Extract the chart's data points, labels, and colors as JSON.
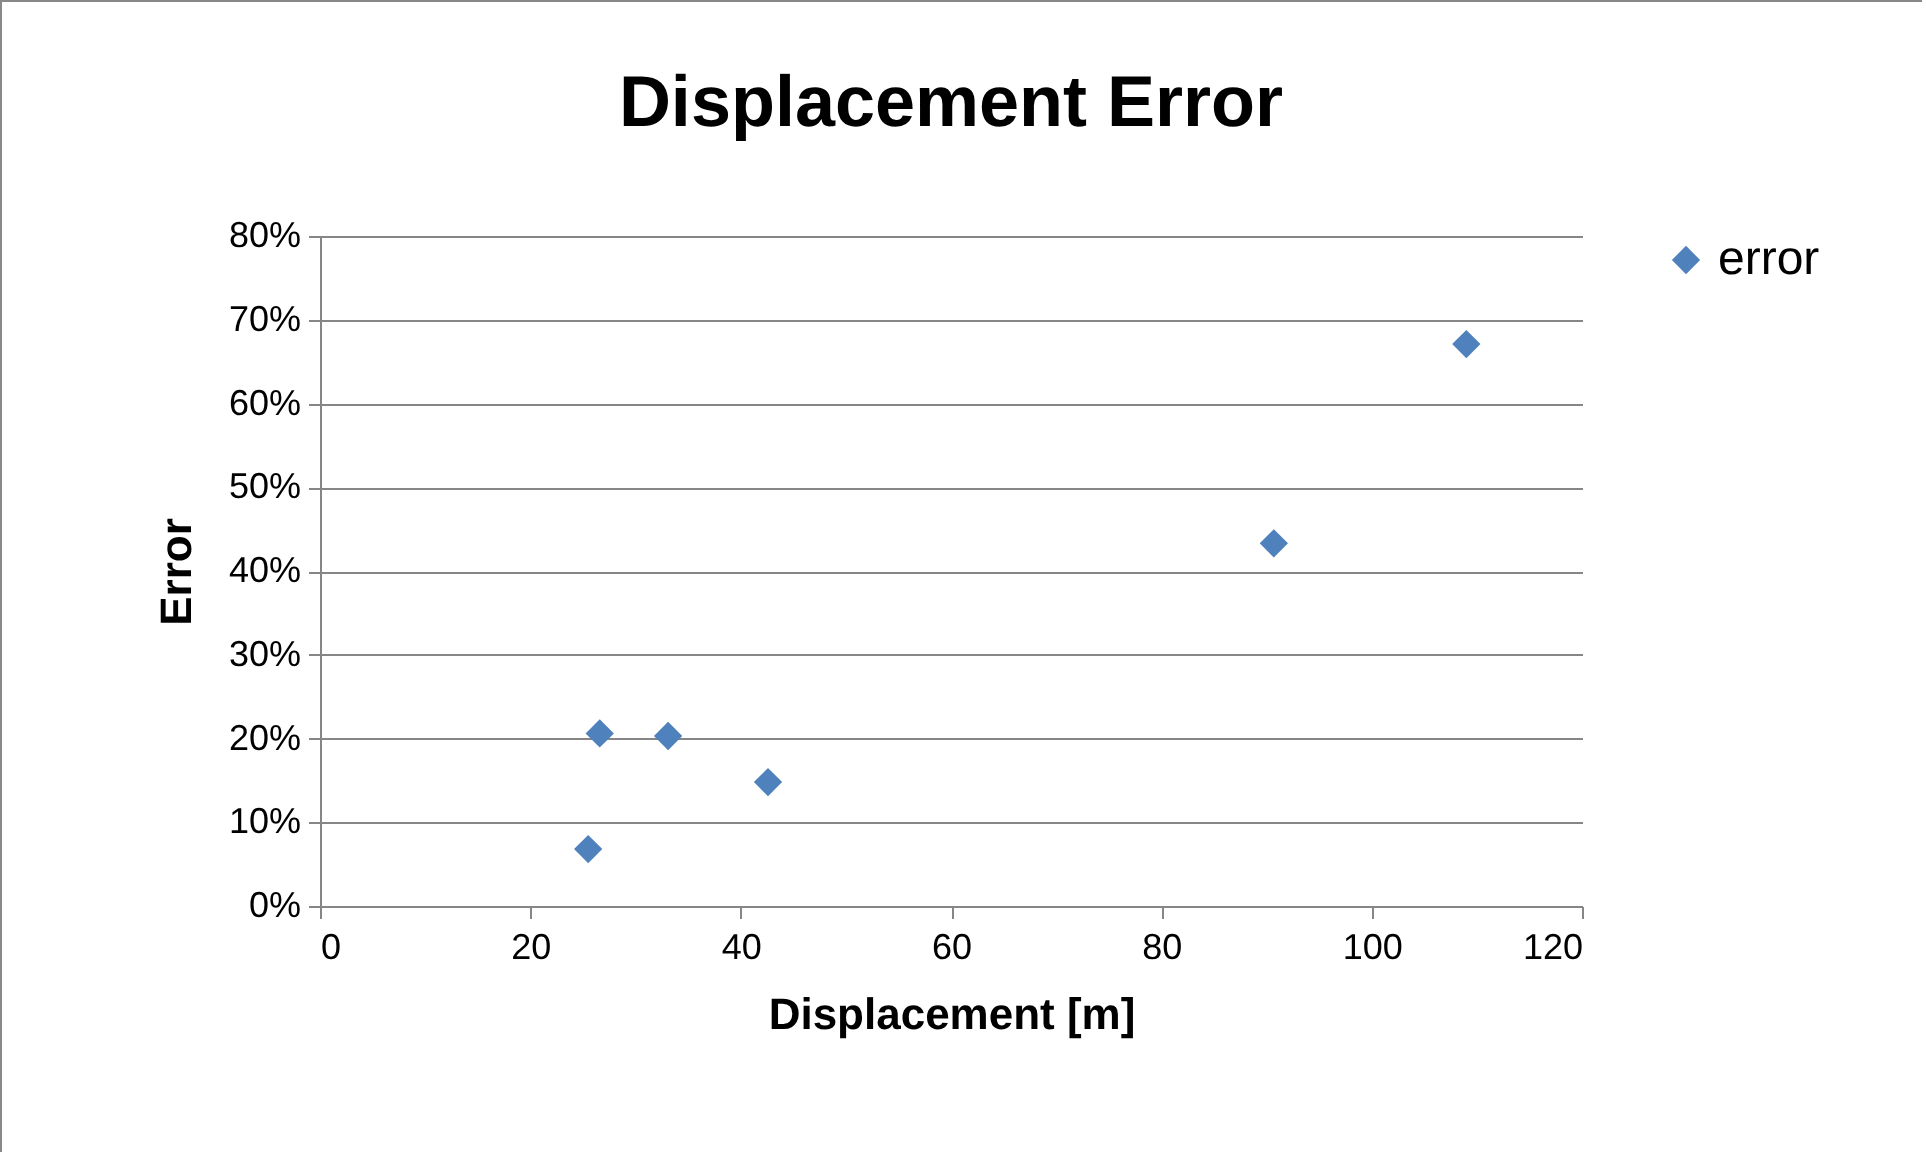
{
  "chart_data": {
    "type": "scatter",
    "title": "Displacement Error",
    "xlabel": "Displacement [m]",
    "ylabel": "Error",
    "x": [
      25.5,
      26.6,
      33.1,
      42.6,
      90.7,
      109
    ],
    "series": [
      {
        "name": "error",
        "color": "#4f81bd",
        "values": [
          6.8,
          20.6,
          20.3,
          14.8,
          43.3,
          67.1
        ]
      }
    ],
    "xlim": [
      0,
      120
    ],
    "xticks": [
      0,
      20,
      40,
      60,
      80,
      100,
      120
    ],
    "ylim": [
      0,
      80
    ],
    "yticks": [
      {
        "value": 0,
        "label": "0%"
      },
      {
        "value": 10,
        "label": "10%"
      },
      {
        "value": 20,
        "label": "20%"
      },
      {
        "value": 30,
        "label": "30%"
      },
      {
        "value": 40,
        "label": "40%"
      },
      {
        "value": 50,
        "label": "50%"
      },
      {
        "value": 60,
        "label": "60%"
      },
      {
        "value": 70,
        "label": "70%"
      },
      {
        "value": 80,
        "label": "80%"
      }
    ],
    "grid": "y",
    "legend": "right",
    "marker": "diamond"
  }
}
